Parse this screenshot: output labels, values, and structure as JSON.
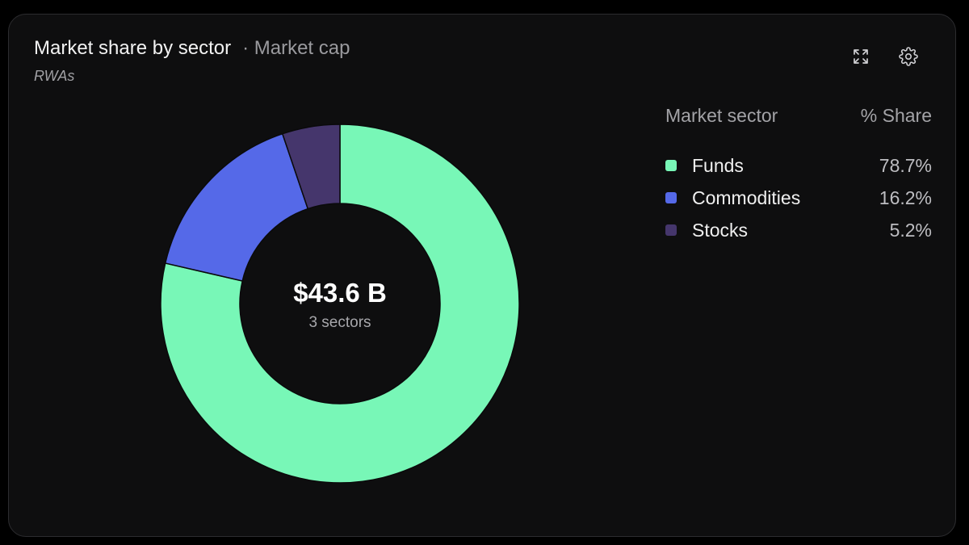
{
  "header": {
    "title": "Market share by sector",
    "metric": "· Market cap",
    "subtitle": "RWAs"
  },
  "toolbar": {
    "expand_icon": "expand-icon",
    "settings_icon": "gear-icon"
  },
  "center": {
    "value": "$43.6 B",
    "caption": "3 sectors"
  },
  "legend": {
    "col_sector": "Market sector",
    "col_share": "% Share",
    "items": [
      {
        "label": "Funds",
        "value": "78.7%"
      },
      {
        "label": "Commodities",
        "value": "16.2%"
      },
      {
        "label": "Stocks",
        "value": "5.2%"
      }
    ]
  },
  "colors": {
    "Funds": "#78f7b7",
    "Commodities": "#5569e8",
    "Stocks": "#45366c",
    "background": "#0e0e0f"
  },
  "chart_data": {
    "type": "pie",
    "style": "donut",
    "title": "Market share by sector",
    "subtitle": "RWAs",
    "total_label": "$43.6 B",
    "categories": [
      "Funds",
      "Commodities",
      "Stocks"
    ],
    "values": [
      78.7,
      16.2,
      5.2
    ],
    "unit": "%",
    "legend_position": "right"
  }
}
